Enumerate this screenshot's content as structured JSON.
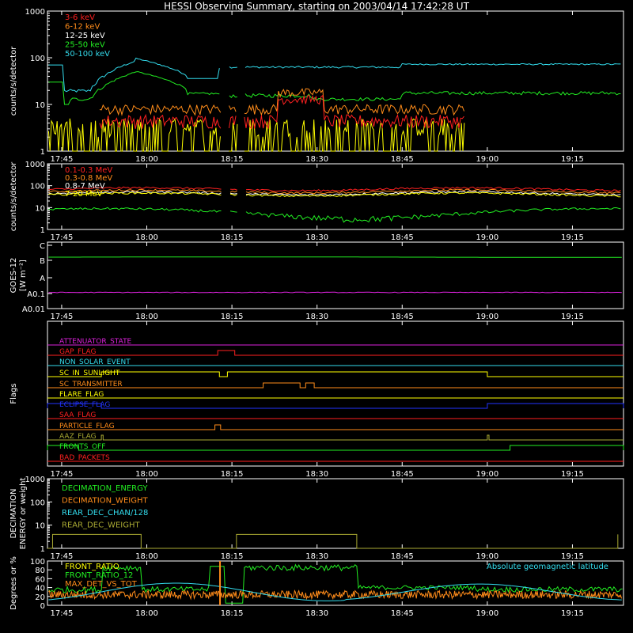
{
  "title": "HESSI Observing Summary, starting on 2003/04/14 17:42:28 UT",
  "colors": {
    "red": "#ff2020",
    "orange": "#ff8c1a",
    "yellow": "#ffff00",
    "green": "#22ee22",
    "cyan": "#33ddee",
    "magenta": "#dd22dd",
    "blue": "#2233ff",
    "olive": "#aaaa33",
    "white": "#ffffff"
  },
  "time_ticks": [
    "17:45",
    "18:00",
    "18:15",
    "18:30",
    "18:45",
    "19:00",
    "19:15"
  ],
  "chart_data": [
    {
      "id": "lo-energy",
      "type": "line",
      "ylabel": "counts/s/detector",
      "yscale": "log",
      "ylim": [
        1,
        1000
      ],
      "yticks": [
        "1",
        "10",
        "100",
        "1000"
      ],
      "series": [
        {
          "name": "3-6 keV",
          "color": "red"
        },
        {
          "name": "6-12 keV",
          "color": "orange"
        },
        {
          "name": "12-25 keV",
          "color": "white"
        },
        {
          "name": "25-50 keV",
          "color": "green"
        },
        {
          "name": "50-100 keV",
          "color": "cyan"
        }
      ]
    },
    {
      "id": "hi-energy",
      "type": "line",
      "ylabel": "counts/s/detector",
      "yscale": "log",
      "ylim": [
        1,
        1000
      ],
      "yticks": [
        "1",
        "10",
        "100",
        "1000"
      ],
      "series": [
        {
          "name": "0.1-0.3 MeV",
          "color": "red"
        },
        {
          "name": "0.3-0.8 MeV",
          "color": "orange"
        },
        {
          "name": "0.8-7 MeV",
          "color": "white"
        },
        {
          "name": "7-20 MeV",
          "color": "yellow"
        }
      ]
    },
    {
      "id": "goes",
      "type": "line",
      "ylabel": "GOES-12",
      "ylabel2": "[W m⁻²]",
      "yticks": [
        "A0.01",
        "A0.1",
        "A",
        "B",
        "C"
      ]
    },
    {
      "id": "flags",
      "type": "line",
      "ylabel": "Flags",
      "series": [
        {
          "name": "ATTENUATOR_STATE",
          "color": "magenta"
        },
        {
          "name": "GAP_FLAG",
          "color": "red"
        },
        {
          "name": "NON_SOLAR_EVENT",
          "color": "cyan"
        },
        {
          "name": "SC_IN_SUNLIGHT",
          "color": "yellow"
        },
        {
          "name": "SC_TRANSMITTER",
          "color": "orange"
        },
        {
          "name": "FLARE_FLAG",
          "color": "yellow"
        },
        {
          "name": "ECLIPSE_FLAG",
          "color": "blue"
        },
        {
          "name": "SAA_FLAG",
          "color": "red"
        },
        {
          "name": "PARTICLE_FLAG",
          "color": "orange"
        },
        {
          "name": "AAZ_FLAG",
          "color": "olive"
        },
        {
          "name": "FRONTS_OFF",
          "color": "green"
        },
        {
          "name": "BAD_PACKETS",
          "color": "red"
        }
      ]
    },
    {
      "id": "decimation",
      "type": "line",
      "ylabel": "DECIMATION",
      "ylabel2": "ENERGY or weight",
      "yscale": "log",
      "ylim": [
        1,
        1000
      ],
      "yticks": [
        "1",
        "10",
        "100",
        "1000"
      ],
      "series": [
        {
          "name": "DECIMATION_ENERGY",
          "color": "green"
        },
        {
          "name": "DECIMATION_WEIGHT",
          "color": "orange"
        },
        {
          "name": "REAR_DEC_CHAN/128",
          "color": "cyan"
        },
        {
          "name": "REAR_DEC_WEIGHT",
          "color": "olive"
        }
      ]
    },
    {
      "id": "ratio",
      "type": "line",
      "ylabel": "Degrees or %",
      "ylim": [
        0,
        100
      ],
      "yticks": [
        "0",
        "20",
        "40",
        "60",
        "80",
        "100"
      ],
      "series": [
        {
          "name": "FRONT_RATIO",
          "color": "yellow"
        },
        {
          "name": "FRONT_RATIO_12",
          "color": "green"
        },
        {
          "name": "MAX_DET_VS_TOT",
          "color": "orange"
        }
      ],
      "annotation": "Absolute geomagnetic latitude"
    }
  ]
}
